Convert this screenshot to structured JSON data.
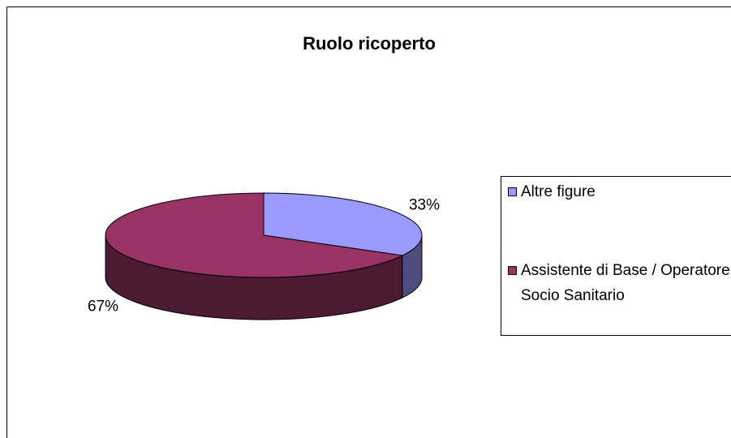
{
  "chart_data": {
    "type": "pie",
    "title": "Ruolo ricoperto",
    "categories": [
      "Altre figure",
      "Assistente di Base / Operatore Socio Sanitario"
    ],
    "values": [
      33,
      67
    ],
    "value_labels": [
      "33%",
      "67%"
    ],
    "colors": [
      "#9999ff",
      "#993366"
    ],
    "legend": "right"
  }
}
